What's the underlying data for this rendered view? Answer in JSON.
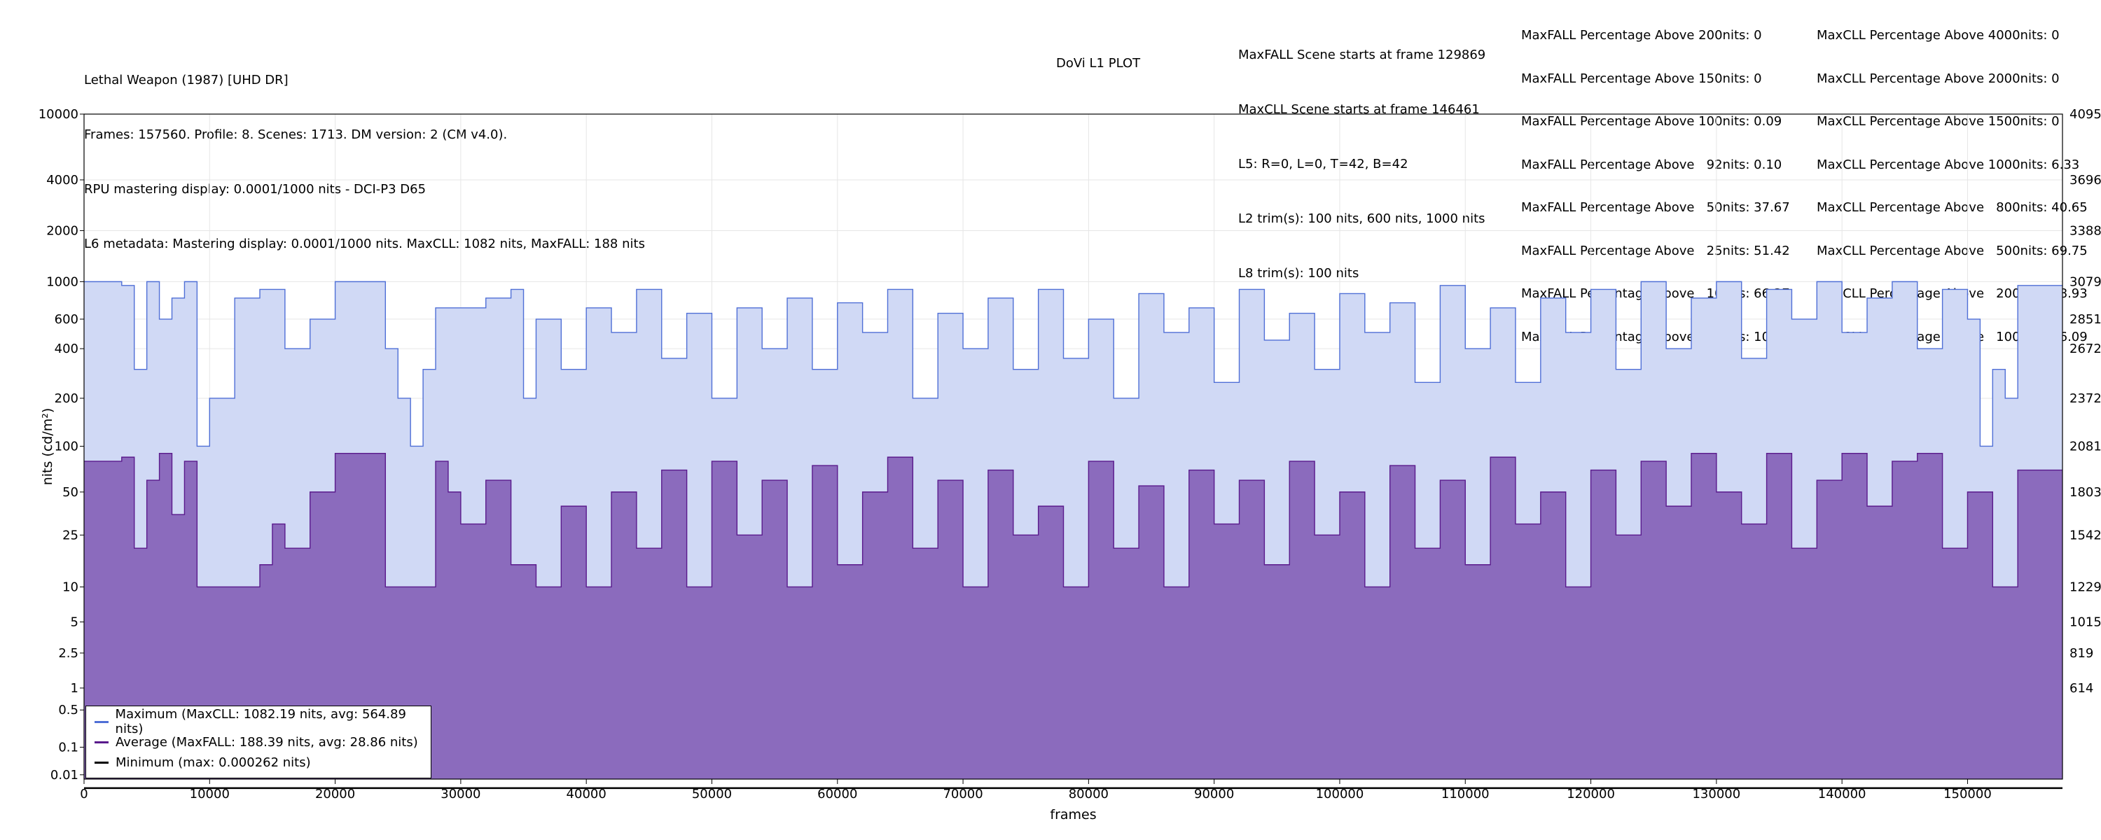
{
  "header": {
    "title": "Lethal Weapon (1987) [UHD DR]",
    "info_line": "Frames: 157560. Profile: 8. Scenes: 1713. DM version: 2 (CM v4.0).",
    "rpu_line": "RPU mastering display: 0.0001/1000 nits - DCI-P3 D65",
    "l6_line": "L6 metadata: Mastering display: 0.0001/1000 nits. MaxCLL: 1082 nits, MaxFALL: 188 nits",
    "plot_title": "DoVi L1 PLOT",
    "scene_lines": [
      "MaxFALL Scene starts at frame 129869",
      "MaxCLL Scene starts at frame 146461",
      "L5: R=0, L=0, T=42, B=42",
      "L2 trim(s): 100 nits, 600 nits, 1000 nits",
      "L8 trim(s): 100 nits"
    ],
    "maxfall_stats": [
      "MaxFALL Percentage Above 200nits: 0",
      "MaxFALL Percentage Above 150nits: 0",
      "MaxFALL Percentage Above 100nits: 0.09",
      "MaxFALL Percentage Above   92nits: 0.10",
      "MaxFALL Percentage Above   50nits: 37.67",
      "MaxFALL Percentage Above   25nits: 51.42",
      "MaxFALL Percentage Above   10nits: 66.37",
      "MaxFALL Percentage Above  2.5nits: 100.00"
    ],
    "maxcll_stats": [
      "MaxCLL Percentage Above 4000nits: 0",
      "MaxCLL Percentage Above 2000nits: 0",
      "MaxCLL Percentage Above 1500nits: 0",
      "MaxCLL Percentage Above 1000nits: 6.33",
      "MaxCLL Percentage Above   800nits: 40.65",
      "MaxCLL Percentage Above   500nits: 69.75",
      "MaxCLL Percentage Above   200nits: 88.93",
      "MaxCLL Percentage Above   100nits: 96.09"
    ]
  },
  "legend": {
    "max_label": "Maximum (MaxCLL: 1082.19 nits, avg: 564.89 nits)",
    "avg_label": "Average (MaxFALL: 188.39 nits, avg: 28.86 nits)",
    "min_label": "Minimum (max: 0.000262 nits)"
  },
  "colors": {
    "max_line": "#4f6fd6",
    "max_fill": "#d0d9f5",
    "avg_line": "#5a1a8c",
    "avg_fill": "#8b6bbd",
    "min_line": "#000000",
    "grid": "#e6e6e6"
  },
  "chart_data": {
    "type": "area",
    "xlabel": "frames",
    "ylabel": "nits (cd/m²)",
    "xlim": [
      0,
      157560
    ],
    "ylim": [
      0.005,
      10000
    ],
    "y_scale": "PQ",
    "grid": true,
    "legend_position": "bottom-left",
    "x_ticks": [
      0,
      10000,
      20000,
      30000,
      40000,
      50000,
      60000,
      70000,
      80000,
      90000,
      100000,
      110000,
      120000,
      130000,
      140000,
      150000
    ],
    "x_tick_labels": [
      "0",
      "10000",
      "20000",
      "30000",
      "40000",
      "50000",
      "60000",
      "70000",
      "80000",
      "90000",
      "100000",
      "110000",
      "120000",
      "130000",
      "140000",
      "150000"
    ],
    "y_ticks": [
      10000,
      4000,
      2000,
      1000,
      600,
      400,
      200,
      100,
      50,
      25,
      10,
      5,
      2.5,
      1,
      0.5,
      0.1,
      0.01
    ],
    "y_tick_labels": [
      "10000",
      "4000",
      "2000",
      "1000",
      "600",
      "400",
      "200",
      "100",
      "50",
      "25",
      "10",
      "5",
      "2.5",
      "1",
      "0.5",
      "0.1",
      "0.01"
    ],
    "right_tick_labels": [
      "4095",
      "3696",
      "3388",
      "3079",
      "2851",
      "2672",
      "2372",
      "2081",
      "1803",
      "1542",
      "1229",
      "1015",
      "819",
      "614"
    ],
    "series": [
      {
        "name": "Maximum (MaxCLL: 1082.19 nits, avg: 564.89 nits)",
        "x": [
          0,
          3000,
          4000,
          5000,
          6000,
          7000,
          8000,
          9000,
          10000,
          12000,
          14000,
          16000,
          18000,
          20000,
          21000,
          22000,
          24000,
          25000,
          26000,
          27000,
          28000,
          32000,
          34000,
          35000,
          36000,
          38000,
          40000,
          42000,
          44000,
          46000,
          48000,
          50000,
          52000,
          54000,
          56000,
          58000,
          60000,
          62000,
          64000,
          66000,
          68000,
          70000,
          72000,
          74000,
          76000,
          78000,
          80000,
          82000,
          84000,
          86000,
          88000,
          90000,
          92000,
          94000,
          96000,
          98000,
          100000,
          102000,
          104000,
          106000,
          108000,
          110000,
          112000,
          114000,
          116000,
          118000,
          120000,
          122000,
          124000,
          126000,
          128000,
          130000,
          132000,
          134000,
          136000,
          138000,
          140000,
          142000,
          144000,
          146000,
          148000,
          150000,
          151000,
          152000,
          153000,
          154000,
          157560
        ],
        "values": [
          1000,
          950,
          300,
          1000,
          600,
          800,
          1000,
          100,
          200,
          800,
          900,
          400,
          600,
          1000,
          1000,
          1000,
          400,
          200,
          100,
          300,
          700,
          800,
          900,
          200,
          600,
          300,
          700,
          500,
          900,
          350,
          650,
          200,
          700,
          400,
          800,
          300,
          750,
          500,
          900,
          200,
          650,
          400,
          800,
          300,
          900,
          350,
          600,
          200,
          850,
          500,
          700,
          250,
          900,
          450,
          650,
          300,
          850,
          500,
          750,
          250,
          950,
          400,
          700,
          250,
          800,
          500,
          900,
          300,
          1000,
          400,
          800,
          1000,
          350,
          900,
          600,
          1000,
          500,
          800,
          1000,
          400,
          900,
          600,
          100,
          300,
          200,
          950,
          950
        ]
      },
      {
        "name": "Average (MaxFALL: 188.39 nits, avg: 28.86 nits)",
        "x": [
          0,
          1000,
          3000,
          4000,
          5000,
          6000,
          7000,
          8000,
          9000,
          10000,
          12000,
          14000,
          15000,
          16000,
          18000,
          20000,
          21000,
          22000,
          24000,
          26000,
          27000,
          28000,
          29000,
          30000,
          32000,
          34000,
          36000,
          38000,
          40000,
          42000,
          44000,
          46000,
          48000,
          50000,
          52000,
          54000,
          56000,
          58000,
          60000,
          62000,
          64000,
          66000,
          68000,
          70000,
          72000,
          74000,
          76000,
          78000,
          80000,
          82000,
          84000,
          86000,
          88000,
          90000,
          92000,
          94000,
          96000,
          98000,
          100000,
          102000,
          104000,
          106000,
          108000,
          110000,
          112000,
          114000,
          116000,
          118000,
          120000,
          122000,
          124000,
          126000,
          128000,
          130000,
          132000,
          134000,
          136000,
          138000,
          140000,
          142000,
          144000,
          146000,
          148000,
          150000,
          152000,
          153000,
          154000,
          157560
        ],
        "values": [
          80,
          80,
          85,
          20,
          60,
          90,
          35,
          80,
          10,
          10,
          10,
          15,
          30,
          20,
          50,
          90,
          90,
          90,
          10,
          10,
          10,
          80,
          50,
          30,
          60,
          15,
          10,
          40,
          10,
          50,
          20,
          70,
          10,
          80,
          25,
          60,
          10,
          75,
          15,
          50,
          85,
          20,
          60,
          10,
          70,
          25,
          40,
          10,
          80,
          20,
          55,
          10,
          70,
          30,
          60,
          15,
          80,
          25,
          50,
          10,
          75,
          20,
          60,
          15,
          85,
          30,
          50,
          10,
          70,
          25,
          80,
          40,
          90,
          50,
          30,
          90,
          20,
          60,
          90,
          40,
          80,
          90,
          20,
          50,
          10,
          10,
          70,
          70
        ]
      },
      {
        "name": "Minimum (max: 0.000262 nits)",
        "x": [
          0,
          157560
        ],
        "values": [
          0.0001,
          0.0001
        ]
      }
    ]
  }
}
